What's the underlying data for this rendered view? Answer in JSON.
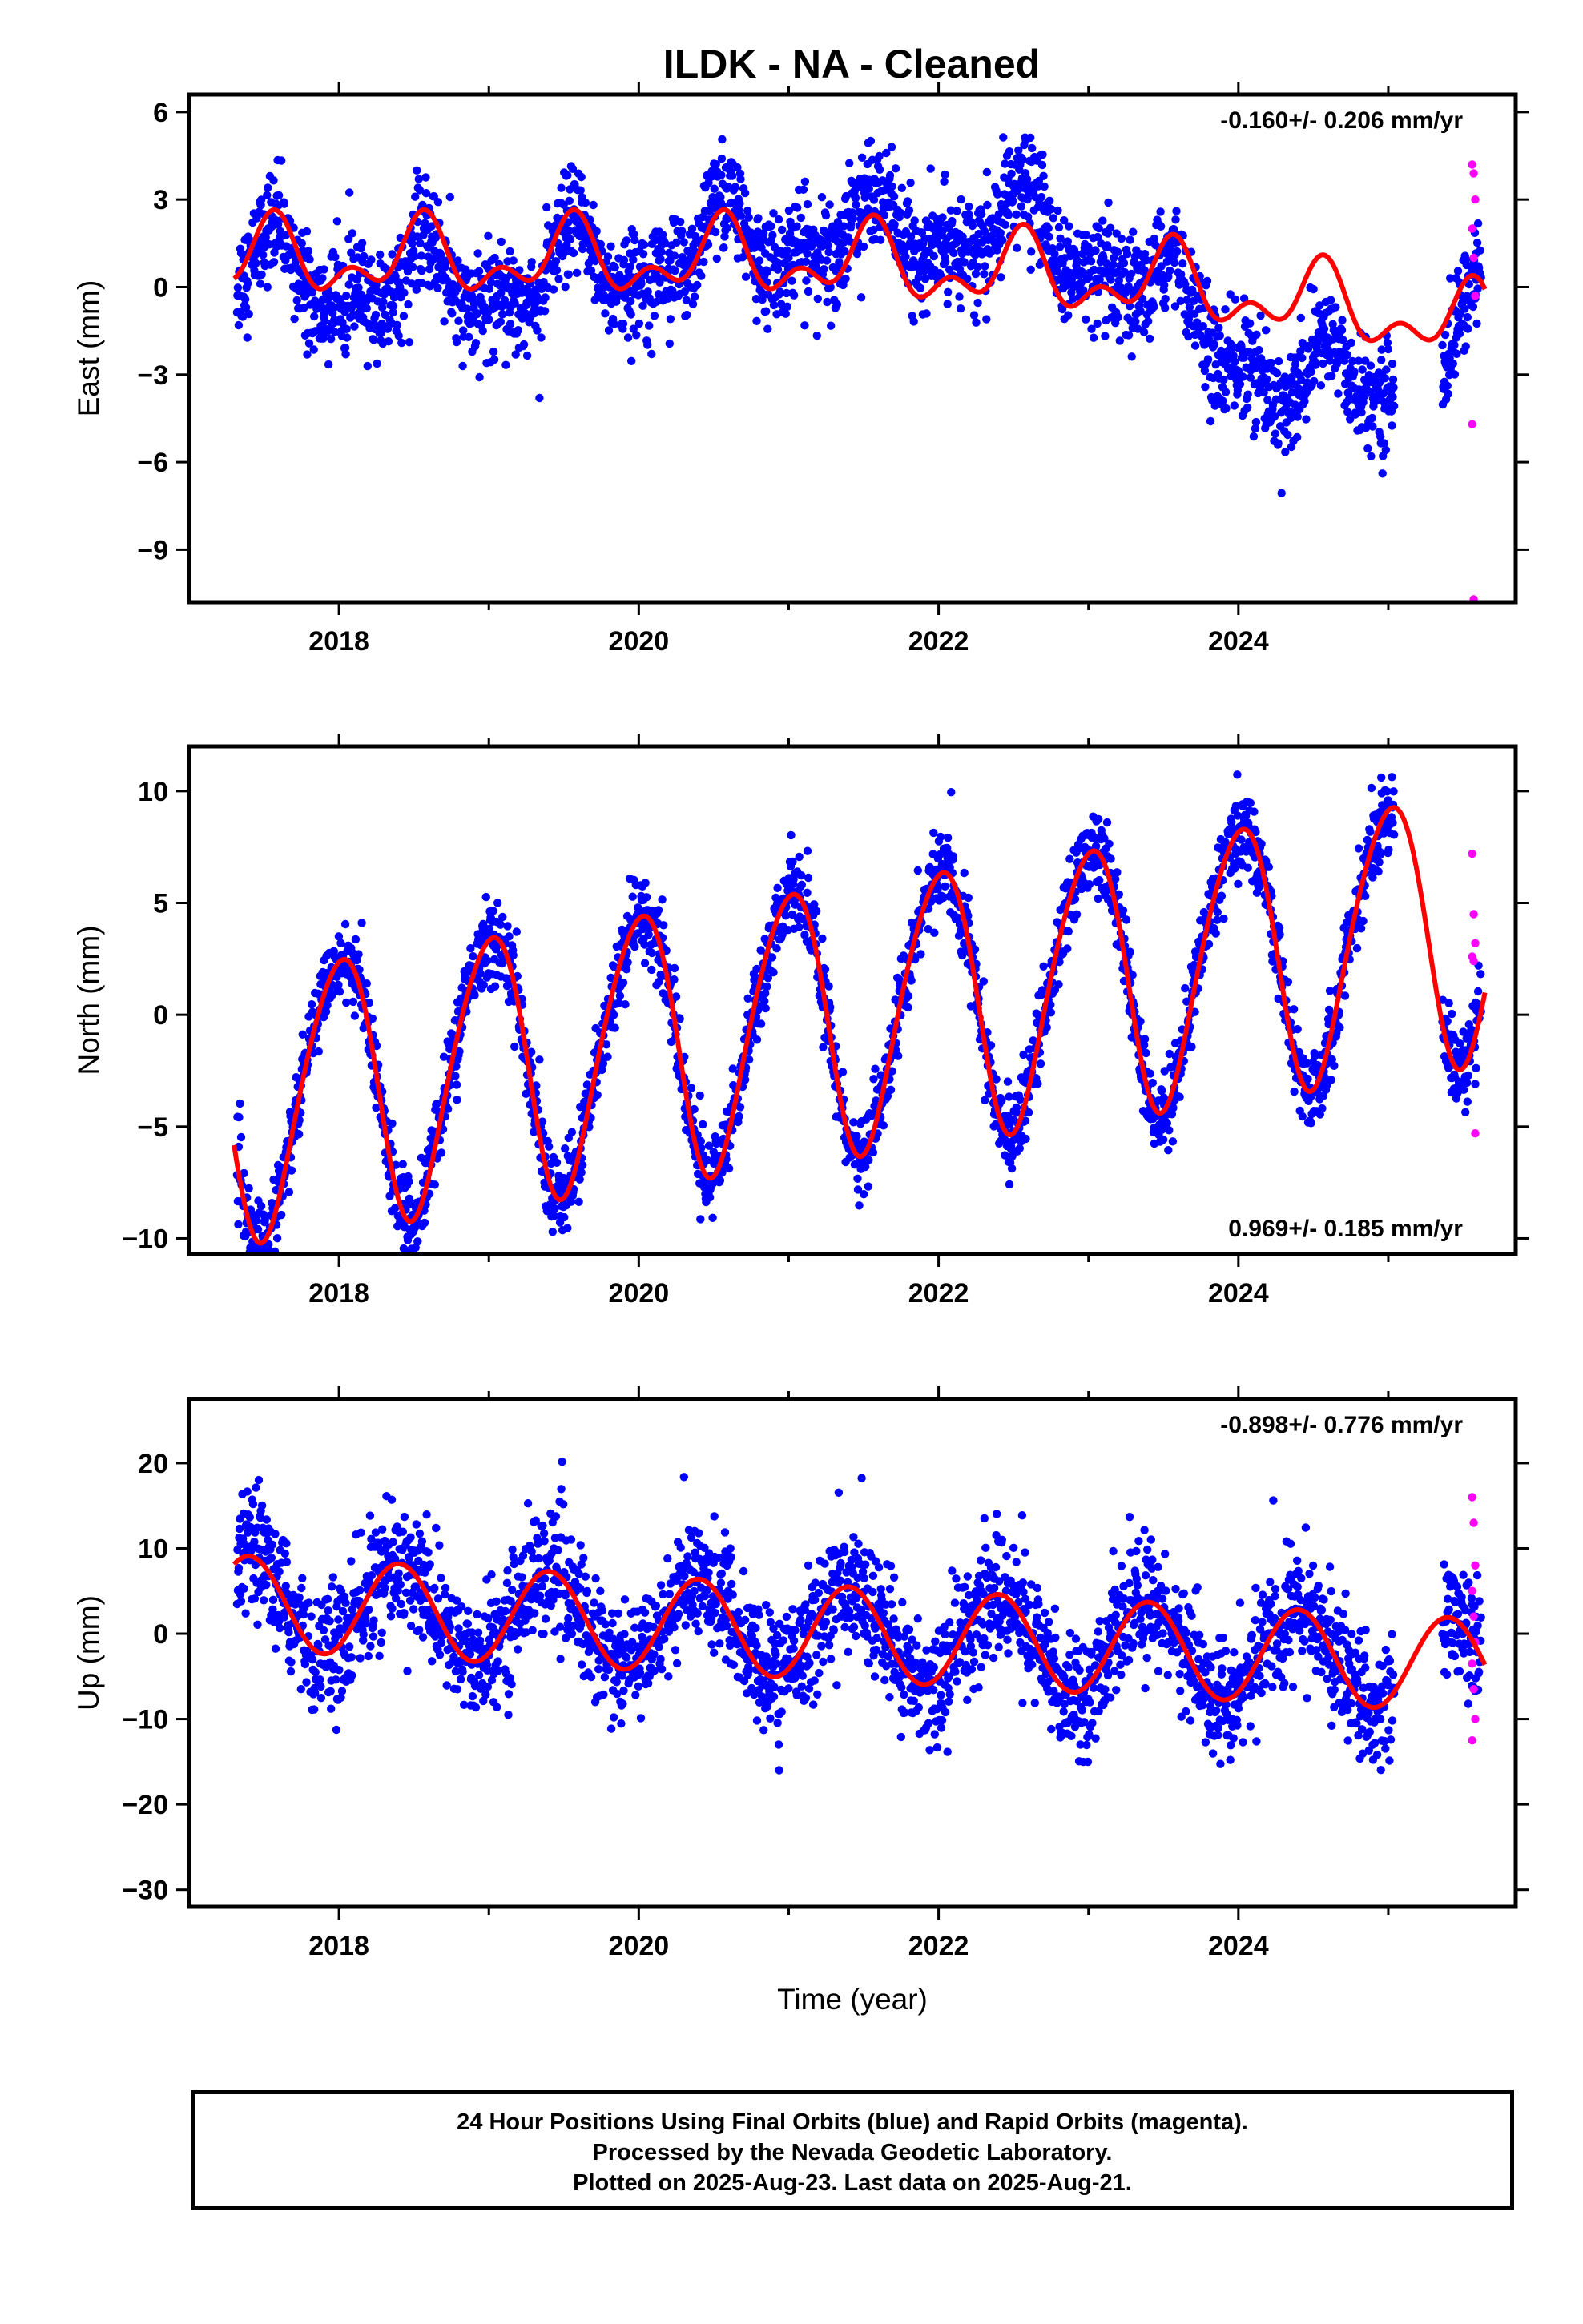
{
  "page": {
    "title": "ILDK  - NA - Cleaned"
  },
  "colors": {
    "final": "#0000ff",
    "rapid": "#ff00ff",
    "model": "#ff0000",
    "frame": "#000000"
  },
  "chart_data": [
    {
      "type": "scatter",
      "name_key": "east",
      "title": "ILDK  - NA - Cleaned",
      "xlabel": "",
      "ylabel": "East (mm)",
      "rate_label": "-0.160+/- 0.206 mm/yr",
      "rate_position": "top-right",
      "xlim": [
        2017.0,
        2025.85
      ],
      "ylim": [
        -10.8,
        6.6
      ],
      "x_ticks": [
        2018,
        2020,
        2022,
        2024
      ],
      "x_tick_labels": [
        "2018",
        "2020",
        "2022",
        "2024"
      ],
      "y_ticks": [
        6,
        3,
        0,
        -3,
        -6,
        -9
      ],
      "y_tick_labels": [
        "6",
        "3",
        "0",
        "−3",
        "−6",
        "−9"
      ],
      "grid": false,
      "model": {
        "offset": 0.3,
        "trend": -0.16,
        "a1": 1.0,
        "p1": 0.3,
        "a2": 0.7,
        "p2": 0.95,
        "epoch": 2021.4
      },
      "noise": 0.9,
      "long_term": [
        [
          2017.3,
          -0.3
        ],
        [
          2018.2,
          -0.8
        ],
        [
          2019.3,
          -0.4
        ],
        [
          2020.5,
          1.0
        ],
        [
          2021.6,
          1.6
        ],
        [
          2022.7,
          1.8
        ],
        [
          2023.3,
          0.2
        ],
        [
          2023.9,
          -1.6
        ],
        [
          2024.4,
          -3.6
        ],
        [
          2024.9,
          -2.6
        ],
        [
          2025.3,
          -3.0
        ],
        [
          2025.7,
          0.0
        ]
      ],
      "rapid_y": [
        4.2,
        3.9,
        3.0,
        2.0,
        1.0,
        -0.3,
        -4.7,
        -10.7
      ]
    },
    {
      "type": "scatter",
      "name_key": "north",
      "xlabel": "",
      "ylabel": "North (mm)",
      "rate_label": "0.969+/- 0.185 mm/yr",
      "rate_position": "bottom-right",
      "xlim": [
        2017.0,
        2025.85
      ],
      "ylim": [
        -10.7,
        12.0
      ],
      "x_ticks": [
        2018,
        2020,
        2022,
        2024
      ],
      "x_tick_labels": [
        "2018",
        "2020",
        "2022",
        "2024"
      ],
      "y_ticks": [
        10,
        5,
        0,
        -5,
        -10
      ],
      "y_tick_labels": [
        "10",
        "5",
        "0",
        "−5",
        "−10"
      ],
      "grid": false,
      "model": {
        "offset": 0.0,
        "trend": 0.969,
        "a1": 6.0,
        "p1": 0.75,
        "a2": 0.6,
        "p2": 0.55,
        "epoch": 2021.4
      },
      "noise": 0.9,
      "long_term": [],
      "rapid_y": [
        7.2,
        4.5,
        3.2,
        2.6,
        2.4,
        -5.3
      ]
    },
    {
      "type": "scatter",
      "name_key": "up",
      "xlabel": "Time (year)",
      "ylabel": "Up (mm)",
      "rate_label": "-0.898+/- 0.776 mm/yr",
      "rate_position": "top-right",
      "xlim": [
        2017.0,
        2025.85
      ],
      "ylim": [
        -32,
        27.5
      ],
      "x_ticks": [
        2018,
        2020,
        2022,
        2024
      ],
      "x_tick_labels": [
        "2018",
        "2020",
        "2022",
        "2024"
      ],
      "y_ticks": [
        20,
        10,
        0,
        -10,
        -20,
        -30
      ],
      "y_tick_labels": [
        "20",
        "10",
        "0",
        "−10",
        "−20",
        "−30"
      ],
      "grid": false,
      "model": {
        "offset": 0.0,
        "trend": -0.898,
        "a1": 5.5,
        "p1": 0.15,
        "a2": 0.0,
        "p2": 0.0,
        "epoch": 2021.4
      },
      "noise": 3.6,
      "long_term": [],
      "rapid_y": [
        16.0,
        13.0,
        8.0,
        5.0,
        2.0,
        -1.0,
        -3.5,
        -6.5,
        -10.0,
        -12.5
      ]
    }
  ],
  "caption": {
    "line1": "24 Hour Positions Using Final Orbits (blue) and Rapid Orbits (magenta).",
    "line2": "Processed by the Nevada Geodetic Laboratory.",
    "line3": "Plotted on 2025-Aug-23. Last data on 2025-Aug-21."
  }
}
